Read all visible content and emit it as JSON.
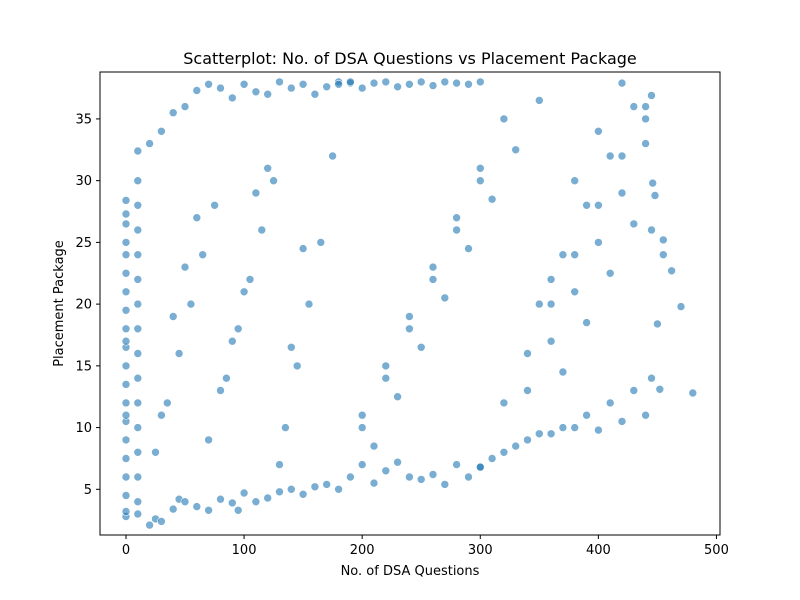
{
  "chart_data": {
    "type": "scatter",
    "title": "Scatterplot: No. of DSA Questions vs Placement Package",
    "xlabel": "No. of DSA Questions",
    "ylabel": "Placement Package",
    "xlim": [
      -22,
      503
    ],
    "ylim": [
      1.3,
      38.8
    ],
    "xticks": [
      0,
      100,
      200,
      300,
      400,
      500
    ],
    "yticks": [
      5,
      10,
      15,
      20,
      25,
      30,
      35
    ],
    "grid": false,
    "marker_color": "#1f77b4",
    "marker_edge_color": "#ffffff",
    "marker_alpha": 0.6,
    "series": [
      {
        "x": [
          0,
          0,
          0,
          0,
          0,
          0,
          0,
          0,
          0,
          0,
          0,
          0,
          0,
          0,
          0,
          0,
          0,
          0,
          0,
          0,
          0,
          0,
          10,
          10,
          10,
          10,
          10,
          10,
          10,
          10,
          10,
          10,
          10,
          10,
          10,
          10,
          10,
          10,
          20,
          25,
          30,
          40,
          45,
          50,
          60,
          70,
          80,
          90,
          95,
          100,
          110,
          120,
          130,
          140,
          150,
          160,
          170,
          20,
          30,
          40,
          50,
          60,
          70,
          80,
          90,
          100,
          110,
          120,
          130,
          140,
          150,
          160,
          170,
          180,
          190,
          25,
          35,
          45,
          55,
          65,
          75,
          85,
          95,
          105,
          115,
          125,
          135,
          145,
          155,
          165,
          175,
          30,
          40,
          50,
          60,
          70,
          80,
          90,
          100,
          110,
          120,
          130,
          140,
          150,
          180,
          190,
          200,
          210,
          220,
          230,
          240,
          250,
          260,
          270,
          280,
          290,
          300,
          180,
          190,
          200,
          210,
          220,
          230,
          240,
          250,
          260,
          270,
          280,
          290,
          300,
          200,
          220,
          240,
          260,
          280,
          300,
          320,
          340,
          360,
          380,
          400,
          420,
          440,
          200,
          220,
          240,
          260,
          280,
          300,
          320,
          340,
          360,
          380,
          400,
          420,
          440,
          210,
          230,
          250,
          270,
          290,
          310,
          330,
          350,
          370,
          390,
          410,
          430,
          300,
          320,
          340,
          360,
          380,
          400,
          420,
          440,
          310,
          330,
          350,
          370,
          390,
          410,
          430,
          445,
          350,
          370,
          390,
          410,
          430,
          445,
          360,
          380,
          400,
          420,
          440,
          450,
          455,
          462,
          470,
          480,
          452,
          446,
          448,
          455,
          445
        ],
        "y": [
          2.8,
          3.2,
          4.5,
          6.0,
          7.5,
          9.0,
          10.5,
          12.0,
          13.5,
          15.0,
          16.5,
          18.0,
          19.5,
          21.0,
          22.5,
          24.0,
          25.0,
          26.5,
          27.3,
          28.4,
          17.0,
          11.0,
          3.0,
          4.0,
          6.0,
          8.0,
          10.0,
          12.0,
          14.0,
          16.0,
          18.0,
          20.0,
          22.0,
          24.0,
          26.0,
          28.0,
          30.0,
          32.4,
          2.1,
          2.6,
          2.4,
          3.4,
          4.2,
          4.0,
          3.6,
          3.3,
          4.2,
          3.9,
          3.3,
          4.7,
          4.0,
          4.3,
          4.8,
          5.0,
          4.6,
          5.2,
          5.4,
          33.0,
          34.0,
          35.5,
          36.0,
          37.3,
          37.8,
          37.5,
          36.7,
          37.8,
          37.2,
          37.0,
          38.0,
          37.5,
          37.8,
          37.0,
          37.6,
          38.0,
          37.9,
          8.0,
          12.0,
          16.0,
          20.0,
          24.0,
          28.0,
          14.0,
          18.0,
          22.0,
          26.0,
          30.0,
          10.0,
          15.0,
          20.0,
          25.0,
          32.0,
          11.0,
          19.0,
          23.0,
          27.0,
          9.0,
          13.0,
          17.0,
          21.0,
          29.0,
          31.0,
          7.0,
          16.5,
          24.5,
          5.0,
          6.0,
          7.0,
          5.5,
          6.5,
          7.2,
          6.0,
          5.8,
          6.2,
          5.4,
          7.0,
          6.0,
          6.8,
          37.8,
          38.0,
          37.5,
          37.9,
          38.0,
          37.6,
          37.8,
          38.0,
          37.7,
          38.0,
          37.9,
          37.8,
          38.0,
          10.0,
          14.0,
          18.0,
          22.0,
          26.0,
          30.0,
          12.0,
          16.0,
          20.0,
          24.0,
          28.0,
          32.0,
          36.0,
          11.0,
          15.0,
          19.0,
          23.0,
          27.0,
          31.0,
          35.0,
          13.0,
          17.0,
          21.0,
          25.0,
          29.0,
          33.0,
          8.5,
          12.5,
          16.5,
          20.5,
          24.5,
          28.5,
          32.5,
          36.5,
          14.5,
          18.5,
          22.5,
          26.5,
          6.8,
          8.0,
          9.0,
          9.5,
          10.0,
          9.8,
          10.5,
          11.0,
          7.5,
          8.5,
          9.5,
          10.0,
          11.0,
          12.0,
          13.0,
          14.0,
          20.0,
          24.0,
          28.0,
          32.0,
          36.0,
          26.0,
          22.0,
          30.0,
          34.0,
          37.9,
          35.0,
          18.4,
          24.0,
          22.7,
          19.8,
          12.8,
          13.1,
          29.8,
          28.8,
          25.2,
          36.9
        ]
      }
    ]
  }
}
